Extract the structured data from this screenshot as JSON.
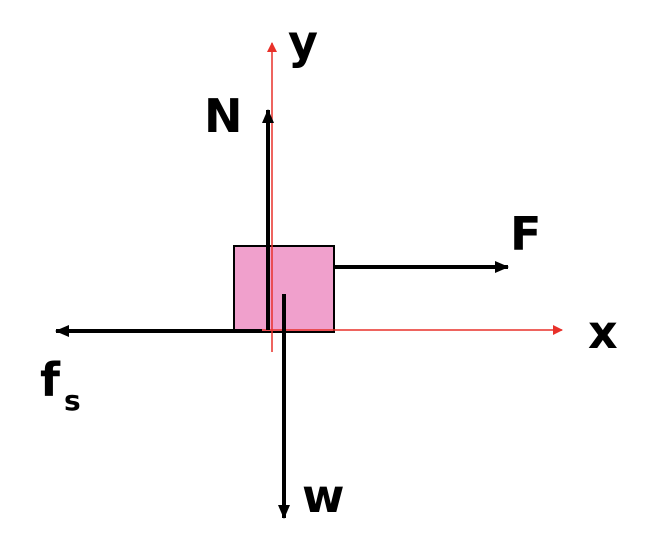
{
  "diagram": {
    "labels": {
      "y_axis": "y",
      "x_axis": "x",
      "normal_force": "N",
      "applied_force": "F",
      "friction_force": "f",
      "friction_subscript": "s",
      "weight": "w"
    },
    "colors": {
      "axis": "#e8312a",
      "vector": "#000000",
      "block_fill": "#f0a0cc",
      "block_stroke": "#000000",
      "background": "#ffffff"
    }
  }
}
